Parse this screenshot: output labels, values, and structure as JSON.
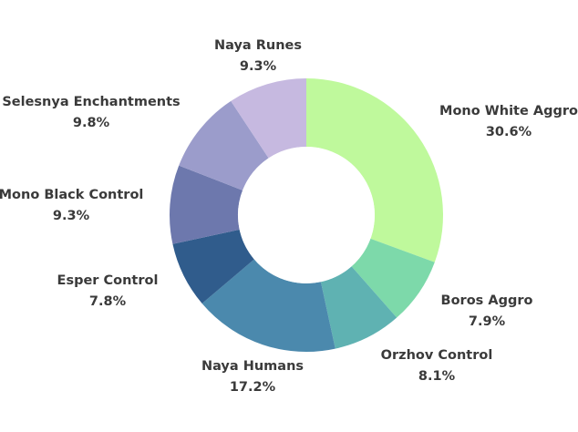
{
  "chart_data": {
    "type": "pie",
    "donut": true,
    "title": "",
    "start_angle_deg": 0,
    "direction": "clockwise",
    "slices": [
      {
        "label": "Mono White Aggro",
        "value": 30.6,
        "value_label": "30.6%",
        "color": "#bff99c"
      },
      {
        "label": "Boros Aggro",
        "value": 7.9,
        "value_label": "7.9%",
        "color": "#7dd9aa"
      },
      {
        "label": "Orzhov Control",
        "value": 8.1,
        "value_label": "8.1%",
        "color": "#5fb2b2"
      },
      {
        "label": "Naya Humans",
        "value": 17.2,
        "value_label": "17.2%",
        "color": "#4b89ad"
      },
      {
        "label": "Esper Control",
        "value": 7.8,
        "value_label": "7.8%",
        "color": "#305c8c"
      },
      {
        "label": "Mono Black Control",
        "value": 9.3,
        "value_label": "9.3%",
        "color": "#6d78ad"
      },
      {
        "label": "Selesnya Enchantments",
        "value": 9.8,
        "value_label": "9.8%",
        "color": "#9b9ccb"
      },
      {
        "label": "Naya Runes",
        "value": 9.3,
        "value_label": "9.3%",
        "color": "#c6b9e0"
      }
    ]
  }
}
